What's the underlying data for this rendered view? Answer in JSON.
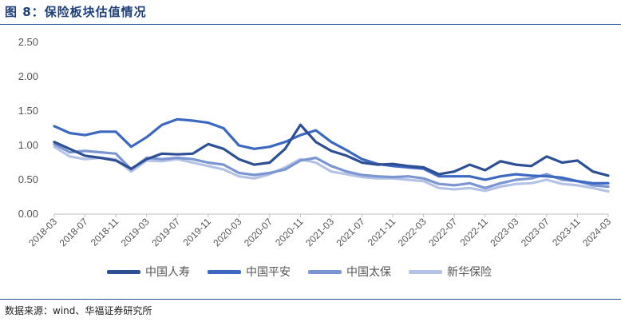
{
  "title": "图 8：保险板块估值情况",
  "source": "数据来源：wind、华福证券研究所",
  "chart_data": {
    "type": "line",
    "title": "图 8：保险板块估值情况",
    "xlabel": "",
    "ylabel": "",
    "ylim": [
      0,
      2.5
    ],
    "yticks": [
      "0.00",
      "0.50",
      "1.00",
      "1.50",
      "2.00",
      "2.50"
    ],
    "xlim": [
      "2018-03",
      "2024-03"
    ],
    "xticks": [
      "2018-03",
      "2018-07",
      "2018-11",
      "2019-03",
      "2019-07",
      "2019-11",
      "2020-03",
      "2020-07",
      "2020-11",
      "2021-03",
      "2021-07",
      "2021-11",
      "2022-03",
      "2022-07",
      "2022-11",
      "2023-03",
      "2023-07",
      "2023-11",
      "2024-03"
    ],
    "grid": false,
    "legend_position": "bottom",
    "x": [
      "2018-03",
      "2018-05",
      "2018-07",
      "2018-09",
      "2018-11",
      "2019-01",
      "2019-03",
      "2019-05",
      "2019-07",
      "2019-09",
      "2019-11",
      "2020-01",
      "2020-03",
      "2020-05",
      "2020-07",
      "2020-09",
      "2020-11",
      "2021-01",
      "2021-03",
      "2021-05",
      "2021-07",
      "2021-09",
      "2021-11",
      "2022-01",
      "2022-03",
      "2022-05",
      "2022-07",
      "2022-09",
      "2022-11",
      "2023-01",
      "2023-03",
      "2023-05",
      "2023-07",
      "2023-09",
      "2023-11",
      "2024-01",
      "2024-03"
    ],
    "series": [
      {
        "name": "中国人寿",
        "color": "#2e4f94",
        "values": [
          1.05,
          0.95,
          0.85,
          0.82,
          0.78,
          0.66,
          0.8,
          0.88,
          0.87,
          0.88,
          1.02,
          0.95,
          0.8,
          0.72,
          0.75,
          0.95,
          1.3,
          1.05,
          0.92,
          0.85,
          0.75,
          0.72,
          0.73,
          0.7,
          0.68,
          0.58,
          0.62,
          0.72,
          0.64,
          0.77,
          0.72,
          0.7,
          0.84,
          0.75,
          0.78,
          0.62,
          0.56
        ]
      },
      {
        "name": "中国平安",
        "color": "#3d68c2",
        "values": [
          1.28,
          1.18,
          1.15,
          1.2,
          1.2,
          0.98,
          1.12,
          1.3,
          1.38,
          1.36,
          1.33,
          1.25,
          1.0,
          0.95,
          0.98,
          1.05,
          1.15,
          1.22,
          1.05,
          0.93,
          0.8,
          0.73,
          0.7,
          0.68,
          0.66,
          0.55,
          0.55,
          0.55,
          0.5,
          0.55,
          0.58,
          0.56,
          0.55,
          0.53,
          0.48,
          0.45,
          0.45
        ]
      },
      {
        "name": "中国太保",
        "color": "#7b95d2",
        "values": [
          1.02,
          0.9,
          0.92,
          0.9,
          0.88,
          0.65,
          0.82,
          0.8,
          0.82,
          0.8,
          0.75,
          0.72,
          0.6,
          0.57,
          0.6,
          0.65,
          0.78,
          0.82,
          0.7,
          0.62,
          0.57,
          0.55,
          0.54,
          0.55,
          0.52,
          0.44,
          0.42,
          0.45,
          0.38,
          0.45,
          0.5,
          0.52,
          0.58,
          0.5,
          0.48,
          0.42,
          0.4
        ]
      },
      {
        "name": "新华保险",
        "color": "#b4c2e6",
        "values": [
          0.98,
          0.84,
          0.8,
          0.82,
          0.8,
          0.62,
          0.78,
          0.77,
          0.8,
          0.75,
          0.7,
          0.65,
          0.55,
          0.52,
          0.58,
          0.68,
          0.8,
          0.75,
          0.62,
          0.58,
          0.54,
          0.52,
          0.52,
          0.5,
          0.48,
          0.38,
          0.36,
          0.38,
          0.34,
          0.4,
          0.44,
          0.45,
          0.5,
          0.44,
          0.42,
          0.38,
          0.33
        ]
      }
    ]
  }
}
